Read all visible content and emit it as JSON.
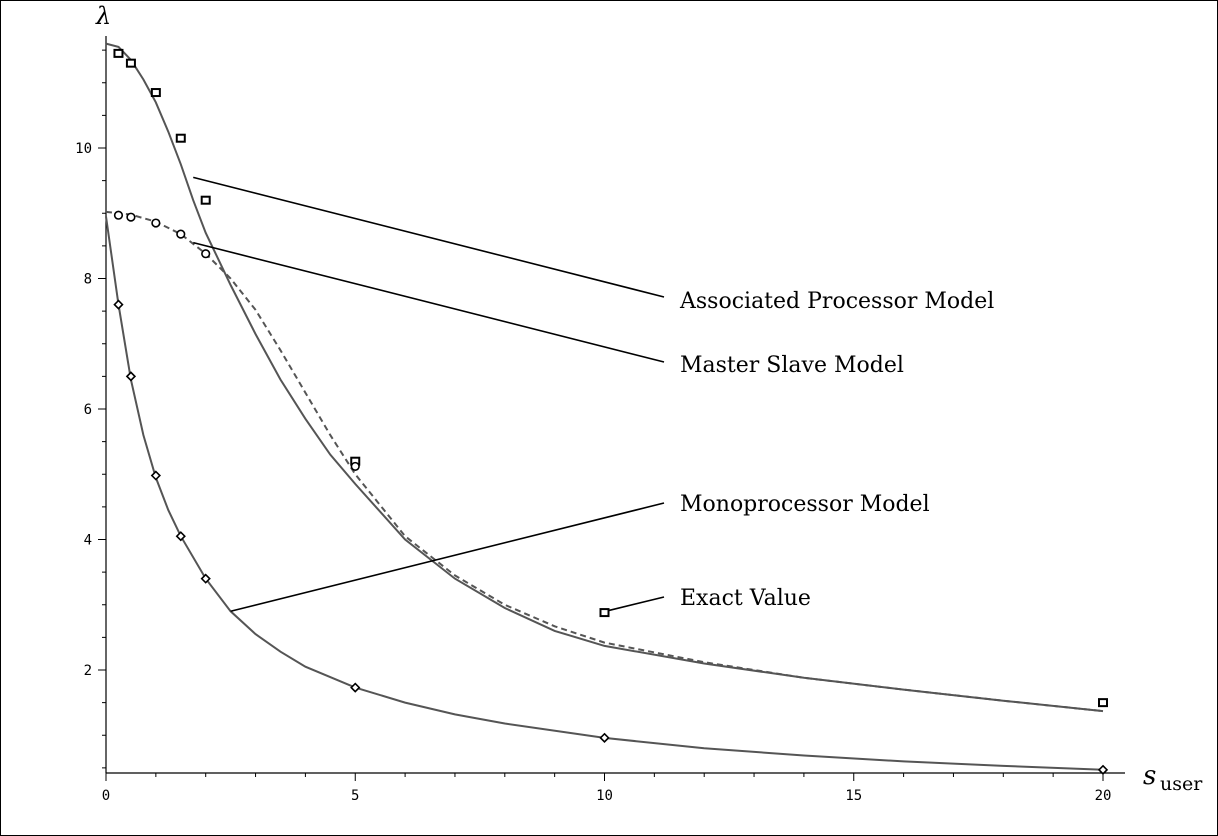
{
  "chart_data": {
    "type": "line",
    "xlabel_main": "s",
    "xlabel_sub": "user",
    "ylabel": "λ",
    "xlim": [
      0,
      20
    ],
    "ylim": [
      0.3,
      11.7
    ],
    "x_ticks": [
      0,
      5,
      10,
      15,
      20
    ],
    "y_ticks": [
      2,
      4,
      6,
      8,
      10
    ],
    "grid": false,
    "colors": {
      "curve": "#555555",
      "markers": "#000000",
      "leaders": "#000000"
    },
    "series": [
      {
        "name": "Associated Processor Model",
        "style": "solid",
        "marker": "square",
        "curve_x": [
          0,
          0.25,
          0.5,
          0.75,
          1,
          1.25,
          1.5,
          1.75,
          2,
          2.5,
          3,
          3.5,
          4,
          4.5,
          5,
          6,
          7,
          8,
          9,
          10,
          12,
          14,
          16,
          18,
          20
        ],
        "curve_y": [
          11.6,
          11.55,
          11.35,
          11.05,
          10.7,
          10.25,
          9.75,
          9.2,
          8.7,
          7.9,
          7.15,
          6.45,
          5.85,
          5.3,
          4.85,
          4.0,
          3.4,
          2.95,
          2.6,
          2.37,
          2.1,
          1.88,
          1.7,
          1.53,
          1.37
        ],
        "points_x": [
          0.25,
          0.5,
          1,
          1.5,
          2,
          5,
          10,
          20
        ],
        "points_y": [
          11.45,
          11.3,
          10.85,
          10.15,
          9.2,
          5.2,
          2.88,
          1.5
        ]
      },
      {
        "name": "Master Slave Model",
        "style": "dashed",
        "marker": "circle",
        "curve_x": [
          0,
          0.5,
          1,
          1.5,
          2,
          2.5,
          3,
          3.5,
          4,
          4.5,
          5,
          6,
          7,
          8,
          9,
          10,
          12,
          14,
          16,
          18,
          20
        ],
        "curve_y": [
          9.02,
          8.98,
          8.87,
          8.68,
          8.38,
          8.0,
          7.52,
          6.9,
          6.25,
          5.6,
          5.0,
          4.05,
          3.45,
          3.0,
          2.67,
          2.42,
          2.12,
          1.88,
          1.7,
          1.53,
          1.37
        ],
        "points_x": [
          0.25,
          0.5,
          1,
          1.5,
          2,
          5
        ],
        "points_y": [
          8.97,
          8.94,
          8.85,
          8.68,
          8.38,
          5.12
        ]
      },
      {
        "name": "Monoprocessor Model",
        "style": "solid",
        "marker": "diamond",
        "curve_x": [
          0,
          0.25,
          0.5,
          0.75,
          1,
          1.25,
          1.5,
          2,
          2.5,
          3,
          3.5,
          4,
          5,
          6,
          7,
          8,
          10,
          12,
          14,
          16,
          18,
          20
        ],
        "curve_y": [
          8.95,
          7.6,
          6.45,
          5.6,
          4.95,
          4.45,
          4.05,
          3.4,
          2.9,
          2.55,
          2.28,
          2.05,
          1.73,
          1.5,
          1.32,
          1.18,
          0.96,
          0.8,
          0.69,
          0.6,
          0.53,
          0.47
        ],
        "points_x": [
          0.25,
          0.5,
          1,
          1.5,
          2,
          5,
          10,
          20
        ],
        "points_y": [
          7.6,
          6.5,
          4.98,
          4.05,
          3.4,
          1.73,
          0.96,
          0.47
        ]
      }
    ],
    "annotations": [
      {
        "text": "Associated Processor Model",
        "from": [
          1.75,
          9.55
        ]
      },
      {
        "text": "Master Slave Model",
        "from": [
          1.75,
          8.55
        ]
      },
      {
        "text": "Monoprocessor Model",
        "from": [
          2.5,
          2.9
        ]
      },
      {
        "text": "Exact Value",
        "from": [
          10.0,
          2.88
        ]
      }
    ]
  }
}
